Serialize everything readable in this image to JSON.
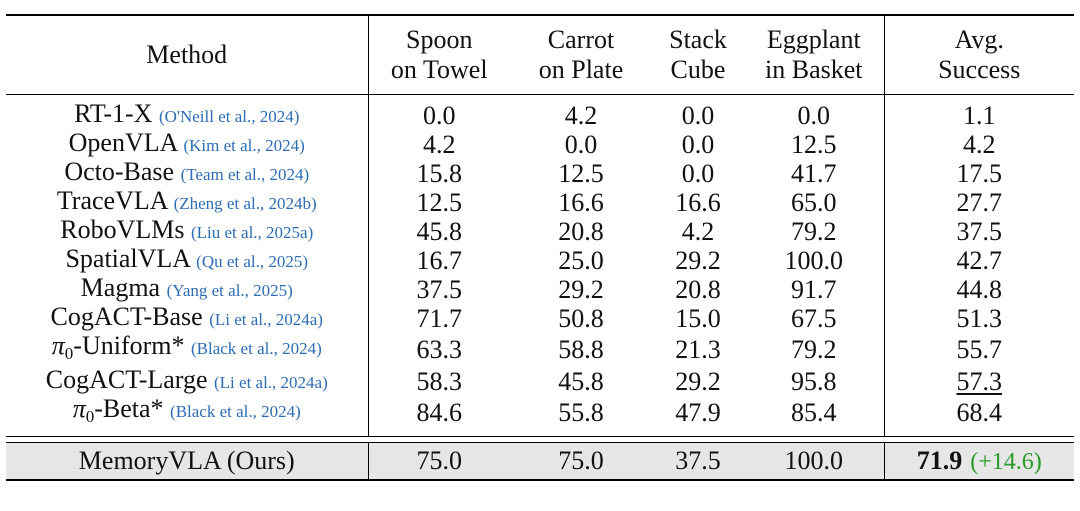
{
  "header": {
    "method": "Method",
    "spoon": [
      "Spoon",
      "on Towel"
    ],
    "carrot": [
      "Carrot",
      "on Plate"
    ],
    "stack": [
      "Stack",
      "Cube"
    ],
    "eggplant": [
      "Eggplant",
      "in Basket"
    ],
    "avg": [
      "Avg.",
      "Success"
    ]
  },
  "rows": [
    {
      "method": "RT-1-X",
      "cite": "(O'Neill et al., 2024)",
      "spoon": "0.0",
      "carrot": "4.2",
      "stack": "0.0",
      "eggplant": "0.0",
      "avg": "1.1"
    },
    {
      "method": "OpenVLA",
      "cite": "(Kim et al., 2024)",
      "spoon": "4.2",
      "carrot": "0.0",
      "stack": "0.0",
      "eggplant": "12.5",
      "avg": "4.2"
    },
    {
      "method": "Octo-Base",
      "cite": "(Team et al., 2024)",
      "spoon": "15.8",
      "carrot": "12.5",
      "stack": "0.0",
      "eggplant": "41.7",
      "avg": "17.5"
    },
    {
      "method": "TraceVLA",
      "cite": "(Zheng et al., 2024b)",
      "spoon": "12.5",
      "carrot": "16.6",
      "stack": "16.6",
      "eggplant": "65.0",
      "avg": "27.7"
    },
    {
      "method": "RoboVLMs",
      "cite": "(Liu et al., 2025a)",
      "spoon": "45.8",
      "carrot": "20.8",
      "stack": "4.2",
      "eggplant": "79.2",
      "avg": "37.5"
    },
    {
      "method": "SpatialVLA",
      "cite": "(Qu et al., 2025)",
      "spoon": "16.7",
      "carrot": "25.0",
      "stack": "29.2",
      "eggplant": "100.0",
      "avg": "42.7"
    },
    {
      "method": "Magma",
      "cite": "(Yang et al., 2025)",
      "spoon": "37.5",
      "carrot": "29.2",
      "stack": "20.8",
      "eggplant": "91.7",
      "avg": "44.8"
    },
    {
      "method": "CogACT-Base",
      "cite": "(Li et al., 2024a)",
      "spoon": "71.7",
      "carrot": "50.8",
      "stack": "15.0",
      "eggplant": "67.5",
      "avg": "51.3"
    },
    {
      "method_pi": "π",
      "method_sub": "0",
      "method_rest": "-Uniform*",
      "cite": "(Black et al., 2024)",
      "spoon": "63.3",
      "carrot": "58.8",
      "stack": "21.3",
      "eggplant": "79.2",
      "avg": "55.7"
    },
    {
      "method": "CogACT-Large",
      "cite": "(Li et al., 2024a)",
      "spoon": "58.3",
      "carrot": "45.8",
      "stack": "29.2",
      "eggplant": "95.8",
      "avg": "57.3"
    },
    {
      "method_pi": "π",
      "method_sub": "0",
      "method_rest": "-Beta*",
      "cite": "(Black et al., 2024)",
      "spoon": "84.6",
      "carrot": "55.8",
      "stack": "47.9",
      "eggplant": "85.4",
      "avg": "68.4"
    }
  ],
  "ours": {
    "method": "MemoryVLA (Ours)",
    "spoon": "75.0",
    "carrot": "75.0",
    "stack": "37.5",
    "eggplant": "100.0",
    "avg": "71.9",
    "gain": "(+14.6)"
  },
  "colors": {
    "citation": "#2d6db5",
    "gain": "#2a9a2a",
    "highlight_row": "#e6e6e6"
  }
}
